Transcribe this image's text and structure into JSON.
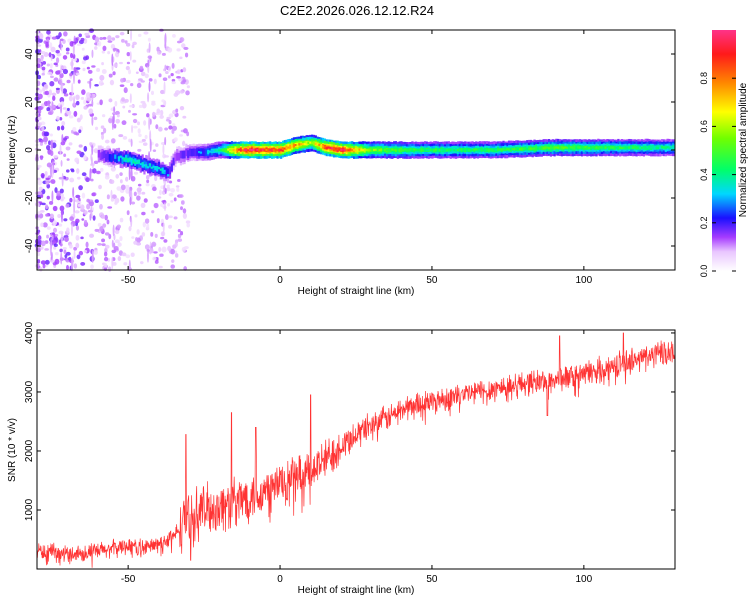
{
  "title": "C2E2.2026.026.12.12.R24",
  "chart_data": [
    {
      "type": "heatmap",
      "xlabel": "Height of straight line (km)",
      "ylabel": "Frequency (Hz)",
      "xlim": [
        -80,
        130
      ],
      "ylim": [
        -50,
        50
      ],
      "xticks": [
        -50,
        0,
        50,
        100
      ],
      "yticks": [
        -40,
        -20,
        0,
        20,
        40
      ],
      "colorbar": {
        "label": "Normalized spectral amplitude",
        "range": [
          0.0,
          1.0
        ],
        "ticks": [
          0.0,
          0.2,
          0.4,
          0.6,
          0.8
        ],
        "tick_labels": [
          "0.0",
          "0.2",
          "0.4",
          "0.6",
          "0.8"
        ]
      },
      "ridge": {
        "x": [
          -60,
          -55,
          -50,
          -45,
          -40,
          -37,
          -35,
          -30,
          -25,
          -20,
          -15,
          -10,
          -5,
          0,
          5,
          10,
          15,
          20,
          30,
          50,
          70,
          90,
          110,
          130
        ],
        "frequency": [
          -2,
          -3,
          -4,
          -6,
          -8,
          -10,
          -3,
          -1,
          -1,
          0,
          0,
          0,
          0,
          0,
          2,
          3,
          1,
          0,
          0,
          0,
          0,
          1,
          1,
          1
        ],
        "amplitude": [
          0.2,
          0.3,
          0.4,
          0.35,
          0.35,
          0.3,
          0.2,
          0.25,
          0.3,
          0.4,
          0.8,
          0.95,
          0.9,
          0.9,
          0.75,
          0.6,
          0.9,
          0.95,
          0.55,
          0.45,
          0.45,
          0.5,
          0.45,
          0.4
        ]
      }
    },
    {
      "type": "line",
      "xlabel": "Height of straight line (km)",
      "ylabel": "SNR (10 * v/v)",
      "xlim": [
        -80,
        130
      ],
      "ylim": [
        0,
        4050
      ],
      "xticks": [
        -50,
        0,
        50,
        100
      ],
      "yticks": [
        1000,
        2000,
        3000,
        4000
      ],
      "color": "#ff3333",
      "series": [
        {
          "name": "SNR",
          "x": [
            -80,
            -70,
            -60,
            -50,
            -45,
            -40,
            -35,
            -30,
            -25,
            -20,
            -15,
            -10,
            -5,
            0,
            5,
            10,
            15,
            20,
            25,
            30,
            35,
            40,
            45,
            50,
            60,
            70,
            80,
            90,
            100,
            110,
            120,
            130
          ],
          "values": [
            300,
            250,
            300,
            400,
            350,
            420,
            550,
            900,
            1000,
            1050,
            1100,
            1250,
            1300,
            1450,
            1550,
            1650,
            1850,
            2100,
            2300,
            2450,
            2550,
            2700,
            2800,
            2850,
            2950,
            3050,
            3150,
            3200,
            3300,
            3450,
            3600,
            3700
          ]
        }
      ],
      "spikes": [
        {
          "x": -31,
          "value": 2280
        },
        {
          "x": -16,
          "value": 2650
        },
        {
          "x": -8,
          "value": 2400
        },
        {
          "x": 10,
          "value": 2950
        },
        {
          "x": 88,
          "value": 2600
        },
        {
          "x": 92,
          "value": 3950
        },
        {
          "x": 113,
          "value": 4000
        }
      ]
    }
  ]
}
